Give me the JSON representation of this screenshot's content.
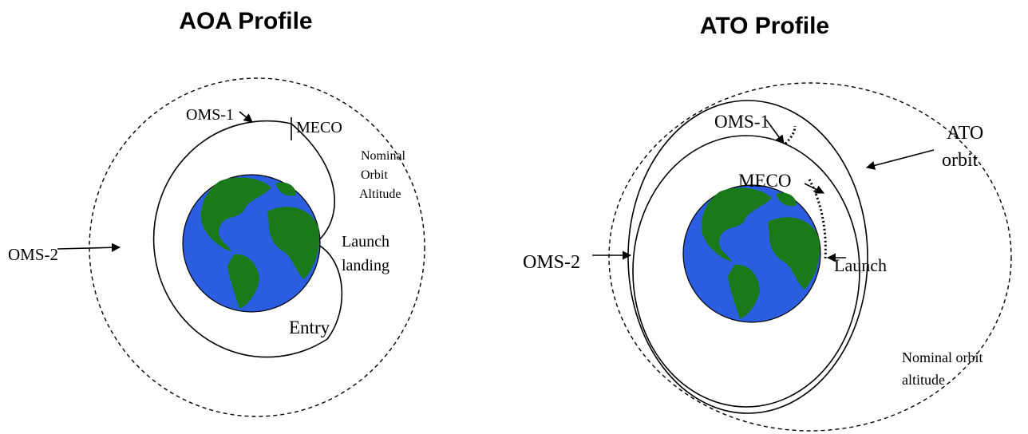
{
  "panels": [
    {
      "title": "AOA  Profile",
      "labels": [
        "OMS-1",
        "MECO",
        "Nominal",
        "Orbit",
        "Altitude",
        "Launch",
        "landing",
        "Entry",
        "OMS-2"
      ]
    },
    {
      "title": "ATO Profile",
      "labels": [
        "OMS-1",
        "MECO",
        "Launch",
        "OMS-2",
        "ATO",
        "orbit",
        "Nominal orbit",
        "altitude"
      ]
    }
  ]
}
